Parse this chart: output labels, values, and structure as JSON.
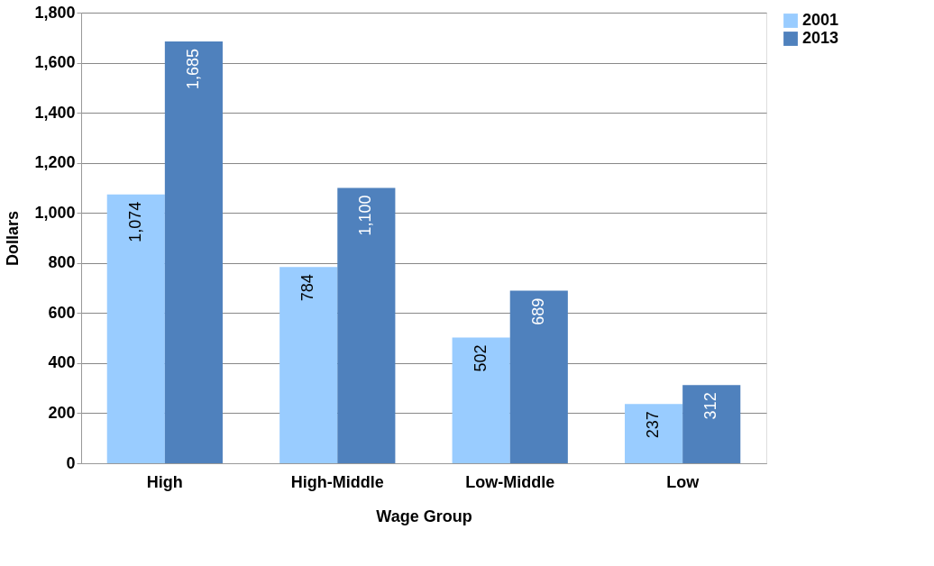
{
  "chart_data": {
    "type": "bar",
    "xlabel": "Wage Group",
    "ylabel": "Dollars",
    "categories": [
      "High",
      "High-Middle",
      "Low-Middle",
      "Low"
    ],
    "series": [
      {
        "name": "2001",
        "color": "#99ccff",
        "values": [
          1074,
          784,
          502,
          237
        ],
        "value_labels": [
          "1,074",
          "784",
          "502",
          "237"
        ]
      },
      {
        "name": "2013",
        "color": "#4f81bd",
        "values": [
          1685,
          1100,
          689,
          312
        ],
        "value_labels": [
          "1,685",
          "1,100",
          "689",
          "312"
        ]
      }
    ],
    "ylim": [
      0,
      1800
    ],
    "yticks": [
      0,
      200,
      400,
      600,
      800,
      {
        "value": 1000,
        "label": "1,000"
      },
      {
        "value": 1200,
        "label": "1,200"
      },
      {
        "value": 1400,
        "label": "1,400"
      },
      {
        "value": 1600,
        "label": "1,600"
      },
      {
        "value": 1800,
        "label": "1,800"
      }
    ],
    "grid": "y",
    "legend": "right"
  }
}
